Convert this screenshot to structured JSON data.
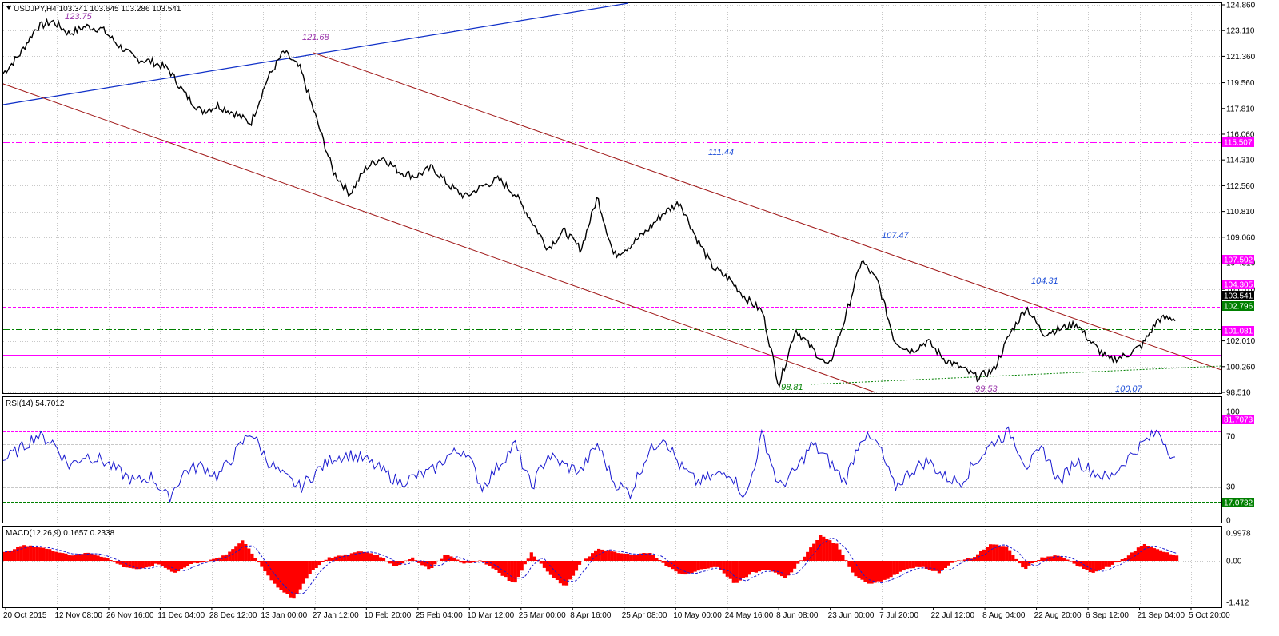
{
  "price_panel": {
    "header": "USDJPY,H4  103.341 103.645 103.286 103.541",
    "y_ticks": [
      "124.860",
      "123.110",
      "121.360",
      "119.560",
      "117.810",
      "116.060",
      "114.310",
      "112.560",
      "110.810",
      "109.060",
      "107.310",
      "105.510",
      "102.010",
      "100.260",
      "98.510"
    ],
    "price_tags": [
      {
        "label": "115.507",
        "color": "#ff00ff"
      },
      {
        "label": "107.502",
        "color": "#ff00ff"
      },
      {
        "label": "104.305",
        "color": "#ff00ff"
      },
      {
        "label": "103.541",
        "color": "#000000"
      },
      {
        "label": "102.796",
        "color": "#008000"
      },
      {
        "label": "101.081",
        "color": "#ff00ff"
      }
    ],
    "annotations": [
      {
        "text": "123.75",
        "color": "#9933aa"
      },
      {
        "text": "121.68",
        "color": "#9933aa"
      },
      {
        "text": "111.44",
        "color": "#1f4fd8"
      },
      {
        "text": "107.47",
        "color": "#1f4fd8"
      },
      {
        "text": "104.31",
        "color": "#1f4fd8"
      },
      {
        "text": "98.81",
        "color": "#008000"
      },
      {
        "text": "99.53",
        "color": "#9933aa"
      },
      {
        "text": "100.07",
        "color": "#1f4fd8"
      }
    ]
  },
  "rsi_panel": {
    "header": "RSI(14) 54.7012",
    "y_ticks": [
      "100",
      "70",
      "30",
      "0"
    ],
    "tags": [
      {
        "label": "81.7073",
        "color": "#ff00ff"
      },
      {
        "label": "17.0732",
        "color": "#008000"
      }
    ]
  },
  "macd_panel": {
    "header": "MACD(12,26,9) 0.1657 0.2338",
    "y_ticks": [
      "0.9978",
      "0.00",
      "-1.412"
    ]
  },
  "x_ticks": [
    "20 Oct 2015",
    "12 Nov 08:00",
    "26 Nov 16:00",
    "11 Dec 04:00",
    "28 Dec 12:00",
    "13 Jan 00:00",
    "27 Jan 12:00",
    "10 Feb 20:00",
    "25 Feb 04:00",
    "10 Mar 12:00",
    "25 Mar 00:00",
    "8 Apr 16:00",
    "25 Apr 08:00",
    "10 May 00:00",
    "24 May 16:00",
    "8 Jun 08:00",
    "23 Jun 00:00",
    "7 Jul 20:00",
    "22 Jul 12:00",
    "8 Aug 04:00",
    "22 Aug 20:00",
    "6 Sep 12:00",
    "21 Sep 04:00",
    "5 Oct 20:00"
  ],
  "chart_data": {
    "type": "line",
    "symbol": "USDJPY",
    "timeframe": "H4",
    "ohlc_last": {
      "open": 103.341,
      "high": 103.645,
      "low": 103.286,
      "close": 103.541
    },
    "ylim": [
      98.51,
      124.86
    ],
    "close_approx": [
      120.2,
      121.5,
      123.3,
      123.75,
      122.9,
      123.4,
      123.2,
      122.1,
      121.2,
      121.0,
      120.5,
      118.8,
      117.6,
      118.0,
      117.5,
      116.8,
      119.8,
      121.68,
      120.5,
      117.0,
      113.5,
      112.0,
      113.8,
      114.5,
      113.5,
      113.2,
      113.8,
      112.6,
      111.8,
      112.5,
      113.0,
      112.0,
      110.2,
      108.3,
      109.5,
      108.2,
      111.8,
      107.8,
      108.5,
      109.5,
      110.7,
      111.44,
      109.0,
      107.0,
      106.2,
      104.9,
      104.0,
      99.0,
      102.8,
      101.5,
      100.2,
      103.5,
      107.47,
      106.0,
      102.0,
      101.3,
      102.0,
      100.8,
      100.2,
      99.53,
      100.0,
      102.5,
      104.31,
      102.5,
      102.8,
      103.2,
      101.8,
      100.7,
      101.0,
      101.7,
      103.5,
      103.541
    ],
    "horizontal_levels": [
      {
        "value": 115.507,
        "style": "magenta dash-dot"
      },
      {
        "value": 107.502,
        "style": "magenta dotted"
      },
      {
        "value": 104.305,
        "style": "magenta dashed"
      },
      {
        "value": 102.796,
        "style": "green dash-dot"
      },
      {
        "value": 101.081,
        "style": "magenta solid"
      }
    ],
    "rsi": {
      "period": 14,
      "last": 54.7012,
      "levels": [
        81.7073,
        17.0732
      ],
      "ylim": [
        0,
        100
      ],
      "values_approx": [
        55,
        65,
        78,
        72,
        50,
        60,
        55,
        45,
        35,
        40,
        20,
        45,
        50,
        40,
        60,
        82,
        55,
        40,
        30,
        45,
        58,
        60,
        55,
        45,
        35,
        40,
        45,
        60,
        65,
        30,
        50,
        70,
        30,
        60,
        50,
        45,
        70,
        35,
        25,
        60,
        78,
        50,
        35,
        40,
        45,
        20,
        80,
        30,
        45,
        70,
        55,
        35,
        78,
        70,
        30,
        45,
        55,
        40,
        35,
        55,
        72,
        81,
        50,
        65,
        35,
        55,
        45,
        38,
        55,
        70,
        82,
        54.7
      ]
    },
    "macd": {
      "fast": 12,
      "slow": 26,
      "signal": 9,
      "main": 0.1657,
      "signal_value": 0.2338,
      "ylim": [
        -1.412,
        0.9978
      ],
      "values_approx": [
        0.3,
        0.55,
        0.5,
        0.35,
        0.2,
        0.3,
        0.1,
        -0.2,
        -0.3,
        -0.1,
        -0.4,
        -0.1,
        0.0,
        0.2,
        0.75,
        -0.1,
        -0.9,
        -1.3,
        -0.4,
        0.1,
        0.2,
        0.35,
        0.2,
        -0.2,
        0.1,
        -0.3,
        0.25,
        -0.1,
        0.0,
        -0.35,
        -0.8,
        0.3,
        -0.4,
        -0.9,
        0.0,
        0.45,
        0.3,
        0.2,
        0.3,
        -0.2,
        -0.5,
        -0.3,
        -0.2,
        -0.8,
        -0.4,
        -0.3,
        -0.6,
        0.1,
        0.9,
        0.6,
        -0.5,
        -0.8,
        -0.6,
        -0.3,
        -0.2,
        -0.4,
        0.0,
        0.1,
        0.6,
        0.5,
        -0.3,
        0.1,
        0.2,
        -0.1,
        -0.4,
        -0.2,
        0.1,
        0.6,
        0.4,
        0.1657
      ]
    }
  }
}
